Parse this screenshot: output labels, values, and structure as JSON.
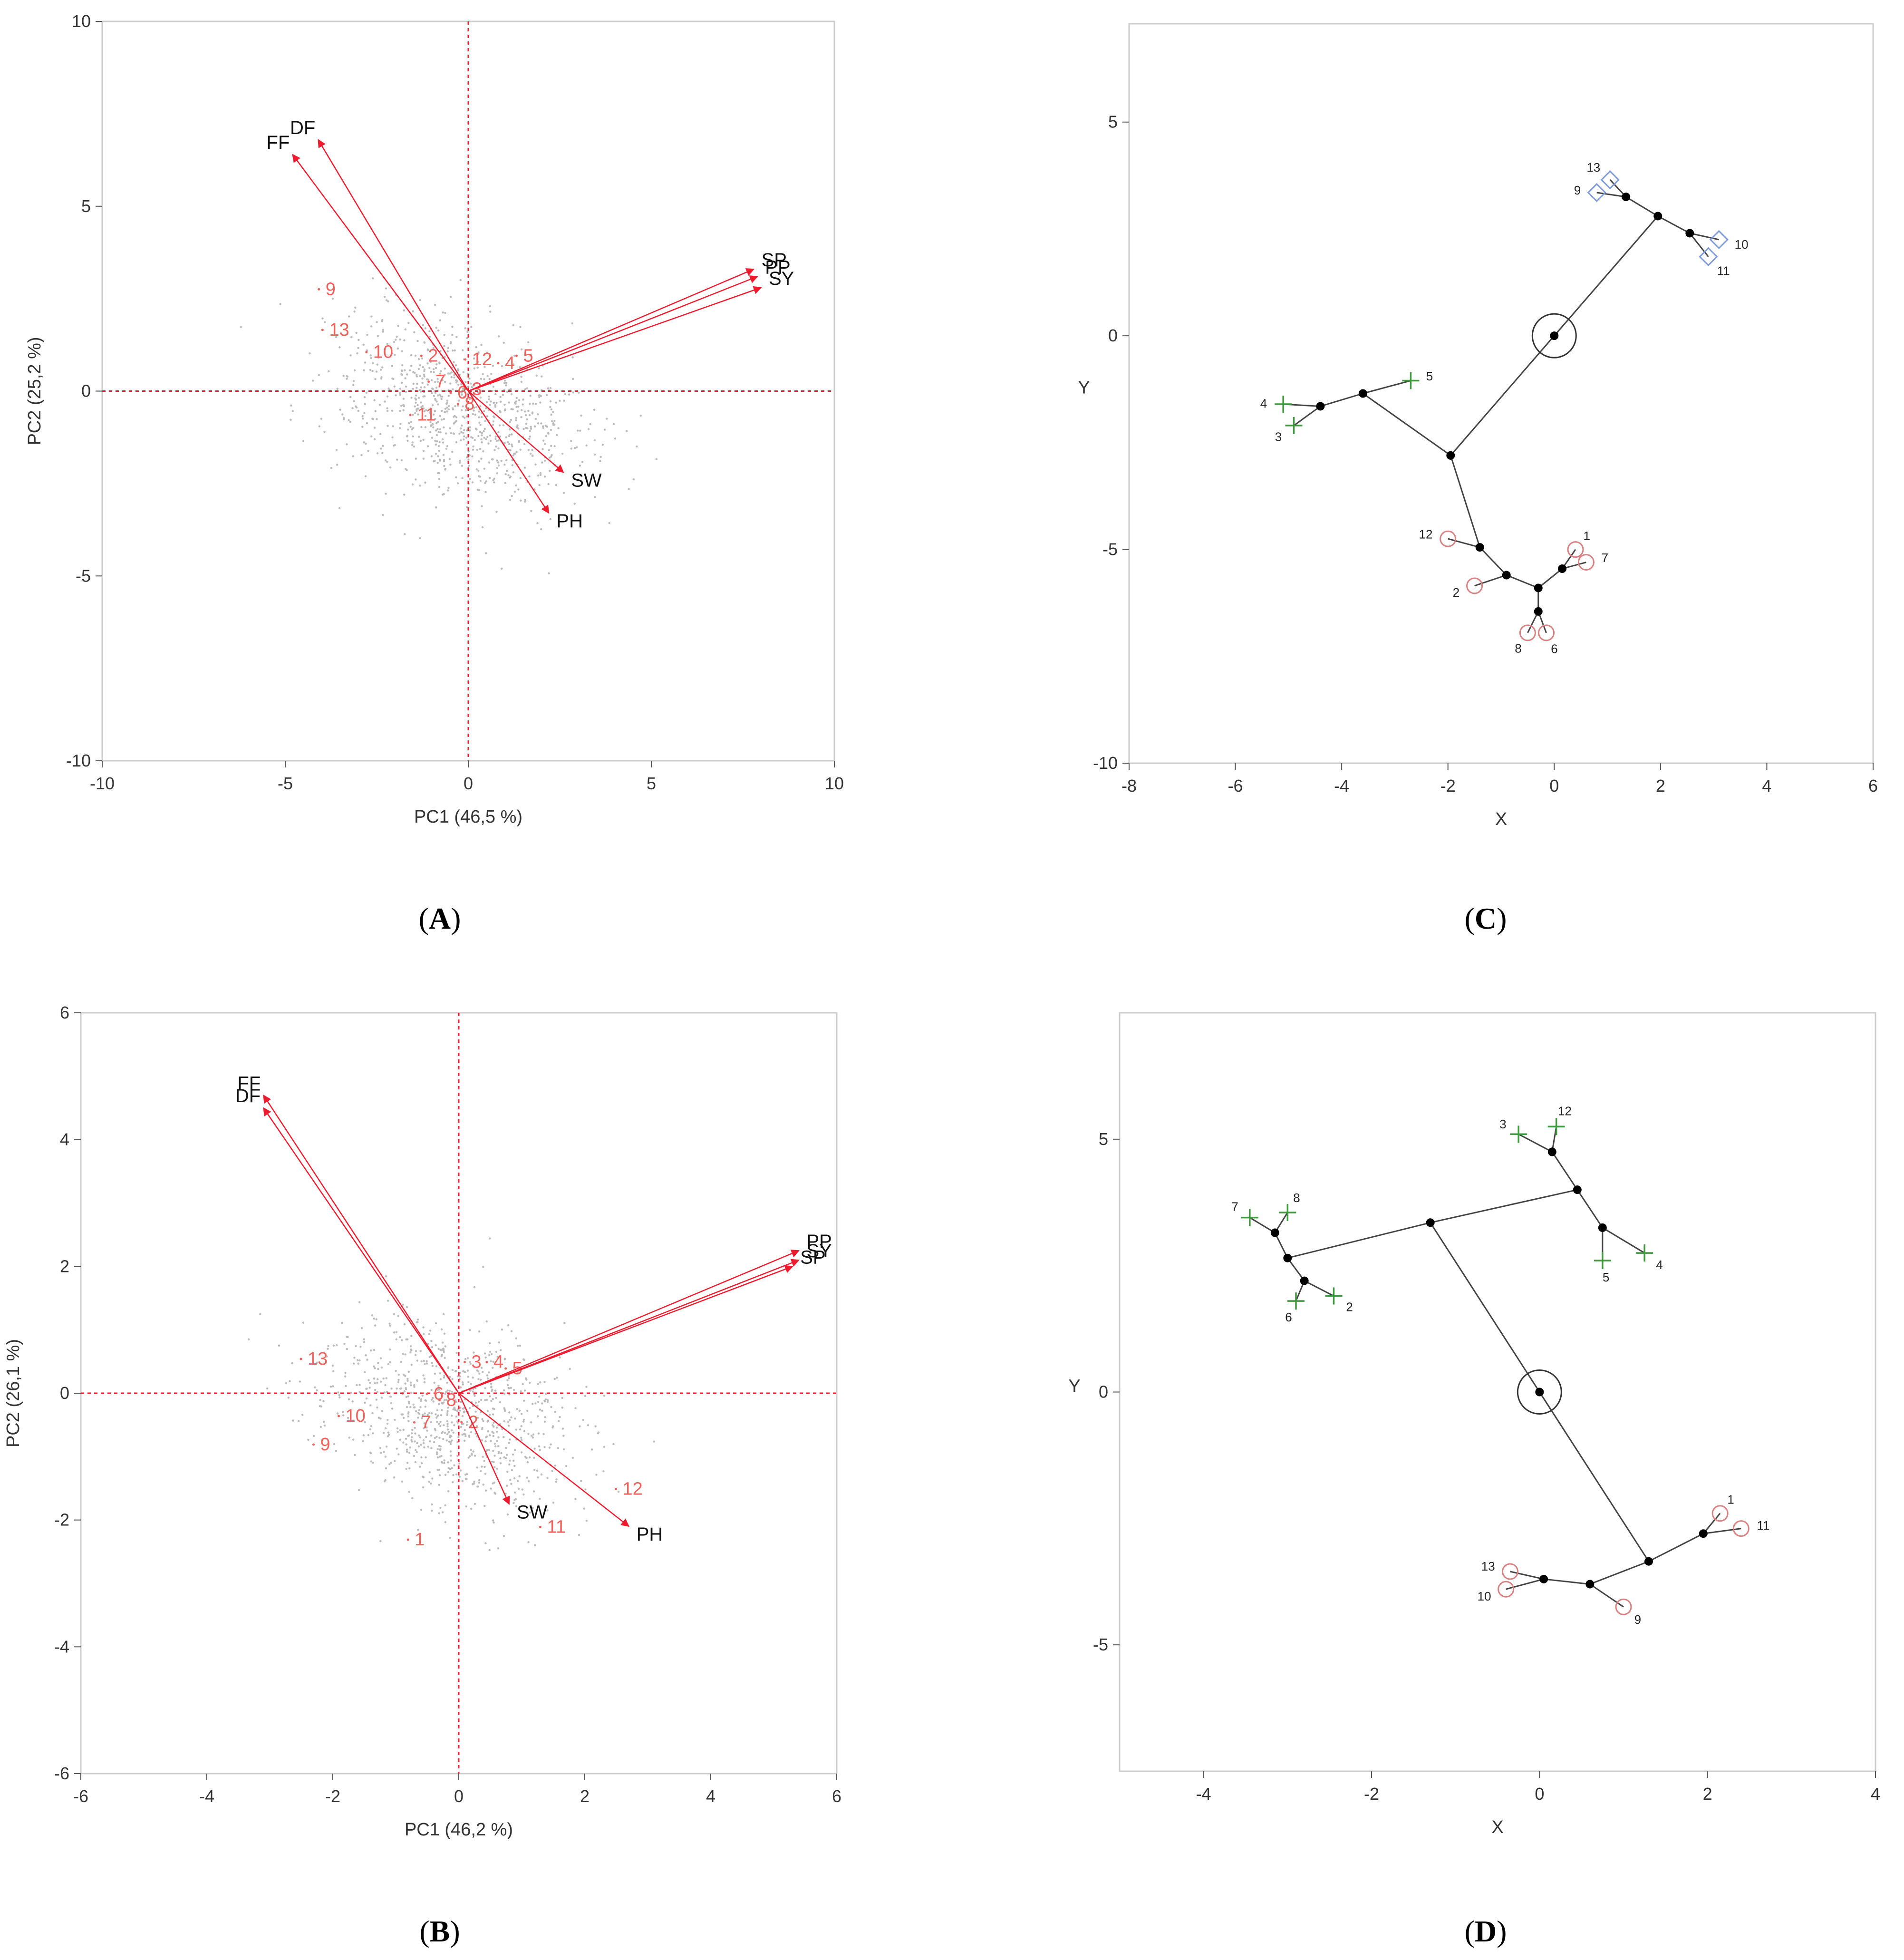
{
  "figure": {
    "captions": [
      "A",
      "B",
      "C",
      "D"
    ]
  },
  "colors": {
    "arrow": "#ee1b2e",
    "obs_label": "#f0605a",
    "cloud": "#bbbbbb",
    "cluster_circle": "#d98080",
    "cluster_plus": "#3f9a3f",
    "cluster_diamond": "#7f9bd8",
    "axis": "#9a9a9a",
    "frame": "#cccccc",
    "tree": "#444444"
  },
  "chart_data": [
    {
      "id": "A",
      "type": "scatter",
      "subtype": "biplot",
      "title": "",
      "xlabel": "PC1 (46,5 %)",
      "ylabel": "PC2 (25,2 %)",
      "xlim": [
        -10,
        10
      ],
      "ylim": [
        -10,
        10
      ],
      "xticks": [
        "-10",
        "-5",
        "0",
        "5",
        "10"
      ],
      "yticks": [
        "-10",
        "-5",
        "0",
        "5",
        "10"
      ],
      "ref_lines": {
        "x": 0,
        "y": 0
      },
      "loadings": [
        {
          "name": "DF",
          "x": -4.1,
          "y": 6.8
        },
        {
          "name": "FF",
          "x": -4.8,
          "y": 6.4
        },
        {
          "name": "SP",
          "x": 7.8,
          "y": 3.3
        },
        {
          "name": "PP",
          "x": 7.9,
          "y": 3.1
        },
        {
          "name": "SY",
          "x": 8.0,
          "y": 2.8
        },
        {
          "name": "SW",
          "x": 2.6,
          "y": -2.2
        },
        {
          "name": "PH",
          "x": 2.2,
          "y": -3.3
        }
      ],
      "observations": [
        {
          "label": "9",
          "x": -3.9,
          "y": 2.6
        },
        {
          "label": "13",
          "x": -3.8,
          "y": 1.5
        },
        {
          "label": "10",
          "x": -2.6,
          "y": 0.9
        },
        {
          "label": "2",
          "x": -1.1,
          "y": 0.8
        },
        {
          "label": "12",
          "x": 0.1,
          "y": 0.7
        },
        {
          "label": "5",
          "x": 1.5,
          "y": 0.8
        },
        {
          "label": "4",
          "x": 1.0,
          "y": 0.6
        },
        {
          "label": "7",
          "x": -0.9,
          "y": 0.1
        },
        {
          "label": "6",
          "x": -0.3,
          "y": -0.2
        },
        {
          "label": "3",
          "x": 0.1,
          "y": -0.1
        },
        {
          "label": "8",
          "x": -0.1,
          "y": -0.5
        },
        {
          "label": "11",
          "x": -1.4,
          "y": -0.8
        }
      ]
    },
    {
      "id": "B",
      "type": "scatter",
      "subtype": "biplot",
      "title": "",
      "xlabel": "PC1 (46,2 %)",
      "ylabel": "PC2 (26,1 %)",
      "xlim": [
        -6,
        6
      ],
      "ylim": [
        -6,
        6
      ],
      "xticks": [
        "-6",
        "-4",
        "-2",
        "0",
        "2",
        "4",
        "6"
      ],
      "yticks": [
        "-6",
        "-4",
        "-2",
        "0",
        "2",
        "4",
        "6"
      ],
      "ref_lines": {
        "x": 0,
        "y": 0
      },
      "loadings": [
        {
          "name": "FF",
          "x": -3.1,
          "y": 4.7
        },
        {
          "name": "DF",
          "x": -3.1,
          "y": 4.5
        },
        {
          "name": "PP",
          "x": 5.4,
          "y": 2.25
        },
        {
          "name": "SY",
          "x": 5.4,
          "y": 2.1
        },
        {
          "name": "SP",
          "x": 5.3,
          "y": 2.0
        },
        {
          "name": "SW",
          "x": 0.8,
          "y": -1.75
        },
        {
          "name": "PH",
          "x": 2.7,
          "y": -2.1
        }
      ],
      "observations": [
        {
          "label": "13",
          "x": -2.4,
          "y": 0.45
        },
        {
          "label": "3",
          "x": 0.2,
          "y": 0.4
        },
        {
          "label": "4",
          "x": 0.55,
          "y": 0.4
        },
        {
          "label": "5",
          "x": 0.85,
          "y": 0.3
        },
        {
          "label": "6",
          "x": -0.4,
          "y": -0.1
        },
        {
          "label": "8",
          "x": -0.2,
          "y": -0.2
        },
        {
          "label": "10",
          "x": -1.8,
          "y": -0.45
        },
        {
          "label": "7",
          "x": -0.6,
          "y": -0.55
        },
        {
          "label": "2",
          "x": 0.15,
          "y": -0.55
        },
        {
          "label": "9",
          "x": -2.2,
          "y": -0.9
        },
        {
          "label": "12",
          "x": 2.6,
          "y": -1.6
        },
        {
          "label": "11",
          "x": 1.4,
          "y": -2.2
        },
        {
          "label": "1",
          "x": -0.7,
          "y": -2.4
        }
      ]
    },
    {
      "id": "C",
      "type": "scatter",
      "subtype": "constellation-tree",
      "title": "",
      "xlabel": "X",
      "ylabel": "Y",
      "xlim": [
        -8,
        6
      ],
      "ylim": [
        -10,
        7.3
      ],
      "xticks": [
        "-8",
        "-6",
        "-4",
        "-2",
        "0",
        "2",
        "4",
        "6"
      ],
      "yticks": [
        "-10",
        "-5",
        "0",
        "5"
      ],
      "root": {
        "x": 0,
        "y": 0
      },
      "nodes": [
        {
          "id": "R",
          "x": 0,
          "y": 0
        },
        {
          "id": "A",
          "x": 1.95,
          "y": 2.8
        },
        {
          "id": "A1",
          "x": 1.35,
          "y": 3.25
        },
        {
          "id": "A2",
          "x": 2.55,
          "y": 2.4
        },
        {
          "id": "B",
          "x": -1.95,
          "y": -2.8
        },
        {
          "id": "B1",
          "x": -3.6,
          "y": -1.35
        },
        {
          "id": "B2",
          "x": -4.4,
          "y": -1.65
        },
        {
          "id": "C",
          "x": -1.4,
          "y": -4.95
        },
        {
          "id": "C1",
          "x": -0.9,
          "y": -5.6
        },
        {
          "id": "C2",
          "x": -0.3,
          "y": -5.9
        },
        {
          "id": "C3",
          "x": 0.15,
          "y": -5.45
        },
        {
          "id": "C4",
          "x": -0.3,
          "y": -6.45
        }
      ],
      "edges": [
        [
          "R",
          "A"
        ],
        [
          "A",
          "A1"
        ],
        [
          "A",
          "A2"
        ],
        [
          "R",
          "B"
        ],
        [
          "B",
          "B1"
        ],
        [
          "B1",
          "B2"
        ],
        [
          "B",
          "C"
        ],
        [
          "C",
          "C1"
        ],
        [
          "C1",
          "C2"
        ],
        [
          "C2",
          "C3"
        ],
        [
          "C2",
          "C4"
        ]
      ],
      "leaves": [
        {
          "label": "13",
          "x": 1.05,
          "y": 3.65,
          "marker": "diamond",
          "parent": "A1"
        },
        {
          "label": "9",
          "x": 0.8,
          "y": 3.35,
          "marker": "diamond",
          "parent": "A1"
        },
        {
          "label": "10",
          "x": 3.1,
          "y": 2.25,
          "marker": "diamond",
          "parent": "A2"
        },
        {
          "label": "11",
          "x": 2.9,
          "y": 1.85,
          "marker": "diamond",
          "parent": "A2"
        },
        {
          "label": "5",
          "x": -2.7,
          "y": -1.05,
          "marker": "plus",
          "parent": "B1"
        },
        {
          "label": "4",
          "x": -5.1,
          "y": -1.6,
          "marker": "plus",
          "parent": "B2"
        },
        {
          "label": "3",
          "x": -4.9,
          "y": -2.1,
          "marker": "plus",
          "parent": "B2"
        },
        {
          "label": "12",
          "x": -2.0,
          "y": -4.75,
          "marker": "circle",
          "parent": "C"
        },
        {
          "label": "2",
          "x": -1.5,
          "y": -5.85,
          "marker": "circle",
          "parent": "C1"
        },
        {
          "label": "1",
          "x": 0.4,
          "y": -5.0,
          "marker": "circle",
          "parent": "C3"
        },
        {
          "label": "7",
          "x": 0.6,
          "y": -5.3,
          "marker": "circle",
          "parent": "C3"
        },
        {
          "label": "8",
          "x": -0.5,
          "y": -6.95,
          "marker": "circle",
          "parent": "C4"
        },
        {
          "label": "6",
          "x": -0.15,
          "y": -6.95,
          "marker": "circle",
          "parent": "C4"
        }
      ]
    },
    {
      "id": "D",
      "type": "scatter",
      "subtype": "constellation-tree",
      "title": "",
      "xlabel": "X",
      "ylabel": "Y",
      "xlim": [
        -5,
        4
      ],
      "ylim": [
        -7.5,
        7.5
      ],
      "xticks": [
        "-4",
        "-2",
        "0",
        "2",
        "4"
      ],
      "yticks": [
        "-5",
        "0",
        "5"
      ],
      "root": {
        "x": 0,
        "y": 0
      },
      "nodes": [
        {
          "id": "R",
          "x": 0,
          "y": 0
        },
        {
          "id": "U",
          "x": -1.3,
          "y": 3.35
        },
        {
          "id": "U1",
          "x": 0.45,
          "y": 4.0
        },
        {
          "id": "U1a",
          "x": 0.15,
          "y": 4.75
        },
        {
          "id": "U1b",
          "x": 0.75,
          "y": 3.25
        },
        {
          "id": "U2",
          "x": -3.0,
          "y": 2.65
        },
        {
          "id": "U2a",
          "x": -3.15,
          "y": 3.15
        },
        {
          "id": "U2b",
          "x": -2.8,
          "y": 2.2
        },
        {
          "id": "L",
          "x": 1.3,
          "y": -3.35
        },
        {
          "id": "L1",
          "x": 1.95,
          "y": -2.8
        },
        {
          "id": "L2",
          "x": 0.6,
          "y": -3.8
        },
        {
          "id": "L3",
          "x": 0.05,
          "y": -3.7
        }
      ],
      "edges": [
        [
          "R",
          "U"
        ],
        [
          "U",
          "U1"
        ],
        [
          "U1",
          "U1a"
        ],
        [
          "U1",
          "U1b"
        ],
        [
          "U",
          "U2"
        ],
        [
          "U2",
          "U2a"
        ],
        [
          "U2",
          "U2b"
        ],
        [
          "R",
          "L"
        ],
        [
          "L",
          "L1"
        ],
        [
          "L",
          "L2"
        ],
        [
          "L2",
          "L3"
        ]
      ],
      "leaves": [
        {
          "label": "3",
          "x": -0.25,
          "y": 5.1,
          "marker": "plus",
          "parent": "U1a"
        },
        {
          "label": "12",
          "x": 0.2,
          "y": 5.25,
          "marker": "plus",
          "parent": "U1a"
        },
        {
          "label": "5",
          "x": 0.75,
          "y": 2.6,
          "marker": "plus",
          "parent": "U1b"
        },
        {
          "label": "4",
          "x": 1.25,
          "y": 2.75,
          "marker": "plus",
          "parent": "U1b"
        },
        {
          "label": "7",
          "x": -3.45,
          "y": 3.45,
          "marker": "plus",
          "parent": "U2a"
        },
        {
          "label": "8",
          "x": -3.0,
          "y": 3.55,
          "marker": "plus",
          "parent": "U2a"
        },
        {
          "label": "6",
          "x": -2.9,
          "y": 1.8,
          "marker": "plus",
          "parent": "U2b"
        },
        {
          "label": "2",
          "x": -2.45,
          "y": 1.9,
          "marker": "plus",
          "parent": "U2b"
        },
        {
          "label": "1",
          "x": 2.15,
          "y": -2.4,
          "marker": "circle",
          "parent": "L1"
        },
        {
          "label": "11",
          "x": 2.4,
          "y": -2.7,
          "marker": "circle",
          "parent": "L1"
        },
        {
          "label": "9",
          "x": 1.0,
          "y": -4.25,
          "marker": "circle",
          "parent": "L2"
        },
        {
          "label": "13",
          "x": -0.35,
          "y": -3.55,
          "marker": "circle",
          "parent": "L3"
        },
        {
          "label": "10",
          "x": -0.4,
          "y": -3.9,
          "marker": "circle",
          "parent": "L3"
        }
      ]
    }
  ]
}
